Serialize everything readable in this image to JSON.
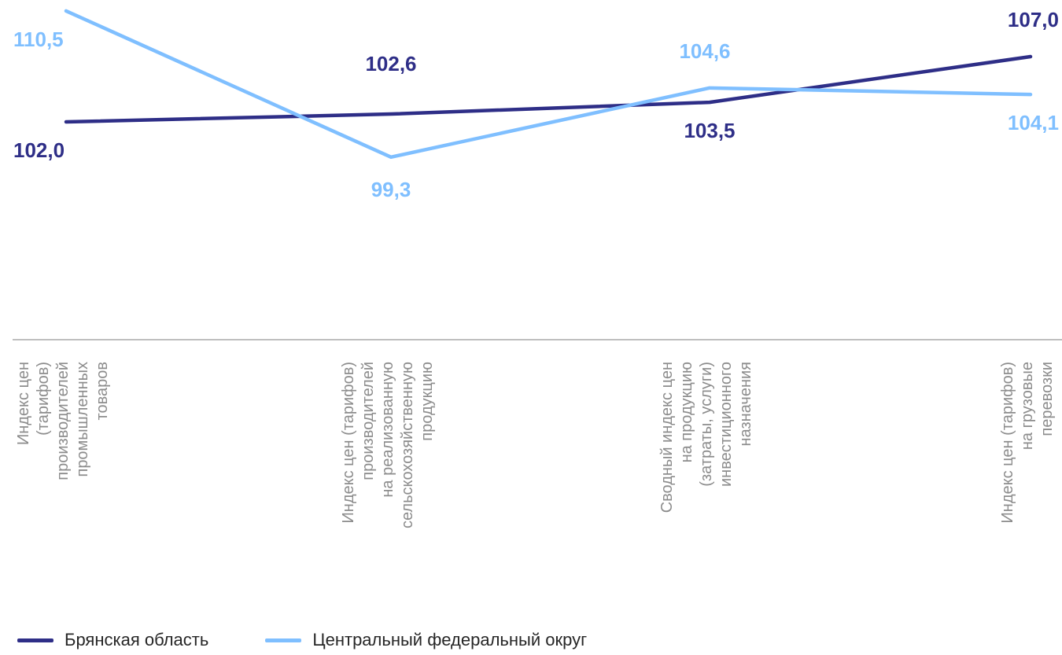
{
  "chart_data": {
    "type": "line",
    "categories": [
      "Индекс цен\n(тарифов)\nпроизводителей\nпромышленных\nтоваров",
      "Индекс цен (тарифов)\nпроизводителей\nна реализованную\nсельскохозяйственную\nпродукцию",
      "Сводный индекс  цен\nна продукцию\n(затраты, услуги)\nинвестиционного\nназначения",
      "Индекс цен (тарифов)\nна грузовые\nперевозки"
    ],
    "series": [
      {
        "name": "Брянская область",
        "values": [
          102.0,
          102.6,
          103.5,
          107.0
        ],
        "labels": [
          "102,0",
          "102,6",
          "103,5",
          "107,0"
        ],
        "color": "#2e2e87"
      },
      {
        "name": "Центральный федеральный округ",
        "values": [
          110.5,
          99.3,
          104.6,
          104.1
        ],
        "labels": [
          "110,5",
          "99,3",
          "104,6",
          "104,1"
        ],
        "color": "#7fbfff"
      }
    ],
    "axis_color": "#bfbfbf",
    "category_label_color": "#8c8c8c",
    "grid": false,
    "legend_position": "bottom-left",
    "title": "",
    "xlabel": "",
    "ylabel": ""
  }
}
